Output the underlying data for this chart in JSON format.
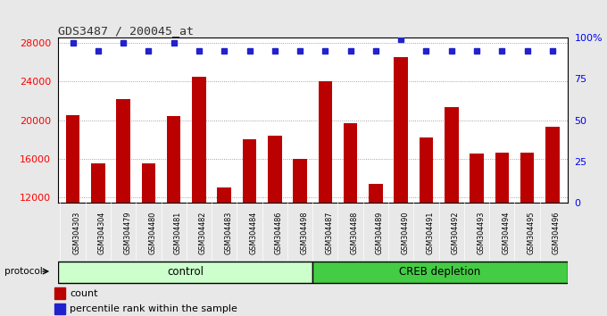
{
  "title": "GDS3487 / 200045_at",
  "samples": [
    "GSM304303",
    "GSM304304",
    "GSM304479",
    "GSM304480",
    "GSM304481",
    "GSM304482",
    "GSM304483",
    "GSM304484",
    "GSM304486",
    "GSM304498",
    "GSM304487",
    "GSM304488",
    "GSM304489",
    "GSM304490",
    "GSM304491",
    "GSM304492",
    "GSM304493",
    "GSM304494",
    "GSM304495",
    "GSM304496"
  ],
  "counts": [
    20500,
    15500,
    22200,
    15500,
    20400,
    24500,
    13000,
    18000,
    18400,
    16000,
    24000,
    19700,
    13400,
    26500,
    18200,
    21300,
    16500,
    16600,
    16600,
    19300
  ],
  "percentile_ranks": [
    97,
    92,
    97,
    92,
    97,
    92,
    92,
    92,
    92,
    92,
    92,
    92,
    92,
    99,
    92,
    92,
    92,
    92,
    92,
    92
  ],
  "bar_color": "#bb0000",
  "dot_color": "#2222cc",
  "ylim_left": [
    11500,
    28500
  ],
  "ylim_right": [
    0,
    100
  ],
  "yticks_left": [
    12000,
    16000,
    20000,
    24000,
    28000
  ],
  "yticks_right": [
    0,
    25,
    50,
    75,
    100
  ],
  "ytick_labels_right": [
    "0",
    "25",
    "50",
    "75",
    "100%"
  ],
  "control_samples": 10,
  "creb_samples": 10,
  "control_label": "control",
  "creb_label": "CREB depletion",
  "protocol_label": "protocol",
  "legend_count": "count",
  "legend_percentile": "percentile rank within the sample",
  "bg_color": "#e8e8e8",
  "plot_bg": "#ffffff",
  "xtick_bg": "#cccccc",
  "control_bg": "#ccffcc",
  "creb_bg": "#44cc44",
  "grid_color": "#888888",
  "title_color": "#333333",
  "bar_bottom": 11500,
  "figwidth": 6.8,
  "figheight": 3.54
}
